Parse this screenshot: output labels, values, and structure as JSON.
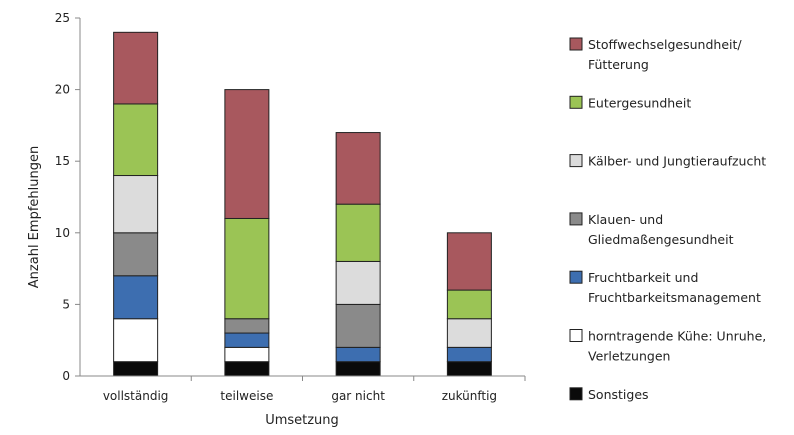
{
  "chart_data": {
    "type": "bar",
    "stacked": true,
    "title": "",
    "xlabel": "Umsetzung",
    "ylabel": "Anzahl Empfehlungen",
    "ylim": [
      0,
      25
    ],
    "yticks": [
      0,
      5,
      10,
      15,
      20,
      25
    ],
    "grid": false,
    "legend_position": "right",
    "categories": [
      "vollständig",
      "teilweise",
      "gar nicht",
      "zukünftig"
    ],
    "series": [
      {
        "name": "Sonstiges",
        "color": "#0a0a0a",
        "values": [
          1,
          1,
          1,
          1
        ]
      },
      {
        "name": "horntragende Kühe: Unruhe, Verletzungen",
        "color": "#ffffff",
        "values": [
          3,
          1,
          0,
          0
        ]
      },
      {
        "name": "Fruchtbarkeit und Fruchtbarkeitsmanagement",
        "color": "#3d6eb0",
        "values": [
          3,
          1,
          1,
          1
        ]
      },
      {
        "name": "Klauen- und Gliedmaßengesundheit",
        "color": "#8a8a8a",
        "values": [
          3,
          1,
          3,
          0
        ]
      },
      {
        "name": "Kälber- und Jungtieraufzucht",
        "color": "#dcdcdc",
        "values": [
          4,
          0,
          3,
          2
        ]
      },
      {
        "name": "Eutergesundheit",
        "color": "#9bc455",
        "values": [
          5,
          7,
          4,
          2
        ]
      },
      {
        "name": "Stoffwechselgesundheit/ Fütterung",
        "color": "#a8585e",
        "values": [
          5,
          9,
          5,
          4
        ]
      }
    ],
    "legend": [
      {
        "lines": [
          "Stoffwechselgesundheit/",
          "Fütterung"
        ],
        "color": "#a8585e"
      },
      {
        "lines": [
          "Eutergesundheit"
        ],
        "color": "#9bc455"
      },
      {
        "lines": [
          "Kälber- und Jungtieraufzucht"
        ],
        "color": "#dcdcdc"
      },
      {
        "lines": [
          "Klauen- und",
          "Gliedmaßengesundheit"
        ],
        "color": "#8a8a8a"
      },
      {
        "lines": [
          "Fruchtbarkeit und",
          "Fruchtbarkeitsmanagement"
        ],
        "color": "#3d6eb0"
      },
      {
        "lines": [
          "horntragende Kühe: Unruhe,",
          "Verletzungen"
        ],
        "color": "#ffffff"
      },
      {
        "lines": [
          "Sonstiges"
        ],
        "color": "#0a0a0a"
      }
    ]
  }
}
